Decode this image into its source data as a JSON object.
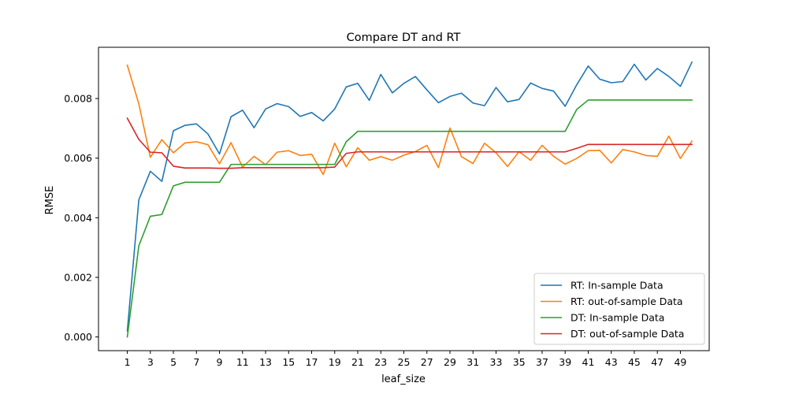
{
  "chart_data": {
    "type": "line",
    "title": "Compare DT and RT",
    "xlabel": "leaf_size",
    "ylabel": "RMSE",
    "xlim": [
      -1.5,
      51.5
    ],
    "ylim": [
      -0.00046,
      0.00972
    ],
    "xticks": [
      1,
      3,
      5,
      7,
      9,
      11,
      13,
      15,
      17,
      19,
      21,
      23,
      25,
      27,
      29,
      31,
      33,
      35,
      37,
      39,
      41,
      43,
      45,
      47,
      49
    ],
    "yticks": [
      0.0,
      0.002,
      0.004,
      0.006,
      0.008
    ],
    "ytick_labels": [
      "0.000",
      "0.002",
      "0.004",
      "0.006",
      "0.008"
    ],
    "grid": false,
    "legend_position": "lower-right",
    "x": [
      1,
      2,
      3,
      4,
      5,
      6,
      7,
      8,
      9,
      10,
      11,
      12,
      13,
      14,
      15,
      16,
      17,
      18,
      19,
      20,
      21,
      22,
      23,
      24,
      25,
      26,
      27,
      28,
      29,
      30,
      31,
      32,
      33,
      34,
      35,
      36,
      37,
      38,
      39,
      40,
      41,
      42,
      43,
      44,
      45,
      46,
      47,
      48,
      49,
      50
    ],
    "series": [
      {
        "name": "RT: In-sample Data",
        "color": "#1f77b4",
        "values": [
          0.0002,
          0.0046,
          0.00556,
          0.00522,
          0.00692,
          0.0071,
          0.00715,
          0.00681,
          0.00614,
          0.00739,
          0.00761,
          0.00702,
          0.00765,
          0.00783,
          0.00773,
          0.0074,
          0.00753,
          0.00725,
          0.00765,
          0.00839,
          0.00851,
          0.00794,
          0.00881,
          0.00819,
          0.00851,
          0.00874,
          0.00829,
          0.00786,
          0.00807,
          0.00818,
          0.00785,
          0.00776,
          0.00837,
          0.00789,
          0.00797,
          0.00852,
          0.00834,
          0.00825,
          0.00774,
          0.00846,
          0.00909,
          0.00865,
          0.00853,
          0.00857,
          0.00915,
          0.00862,
          0.00901,
          0.00874,
          0.00841,
          0.00922
        ]
      },
      {
        "name": "RT: out-of-sample Data",
        "color": "#ff7f0e",
        "values": [
          0.00912,
          0.00782,
          0.00603,
          0.00662,
          0.00618,
          0.00651,
          0.00655,
          0.00645,
          0.00581,
          0.00652,
          0.0057,
          0.00606,
          0.00578,
          0.0062,
          0.00625,
          0.00609,
          0.00613,
          0.00545,
          0.0065,
          0.00571,
          0.00635,
          0.00593,
          0.00605,
          0.00593,
          0.0061,
          0.00622,
          0.00643,
          0.00568,
          0.00701,
          0.00605,
          0.00582,
          0.0065,
          0.00618,
          0.00572,
          0.00622,
          0.00593,
          0.00643,
          0.00606,
          0.0058,
          0.00599,
          0.00625,
          0.00626,
          0.00584,
          0.00629,
          0.00621,
          0.00609,
          0.00606,
          0.00674,
          0.00599,
          0.00657
        ]
      },
      {
        "name": "DT: In-sample Data",
        "color": "#2ca02c",
        "values": [
          0.0,
          0.00306,
          0.00405,
          0.00411,
          0.00507,
          0.00519,
          0.00519,
          0.00519,
          0.00519,
          0.00579,
          0.00579,
          0.00579,
          0.00579,
          0.00579,
          0.00579,
          0.00579,
          0.00579,
          0.00579,
          0.00579,
          0.00655,
          0.0069,
          0.0069,
          0.0069,
          0.0069,
          0.0069,
          0.0069,
          0.0069,
          0.0069,
          0.0069,
          0.0069,
          0.0069,
          0.0069,
          0.0069,
          0.0069,
          0.0069,
          0.0069,
          0.0069,
          0.0069,
          0.0069,
          0.00763,
          0.00795,
          0.00795,
          0.00795,
          0.00795,
          0.00795,
          0.00795,
          0.00795,
          0.00795,
          0.00795,
          0.00795
        ]
      },
      {
        "name": "DT: out-of-sample Data",
        "color": "#d62728",
        "values": [
          0.00734,
          0.00663,
          0.0062,
          0.00618,
          0.00573,
          0.00567,
          0.00567,
          0.00567,
          0.00566,
          0.00566,
          0.00568,
          0.00568,
          0.00568,
          0.00568,
          0.00568,
          0.00568,
          0.00568,
          0.00568,
          0.0057,
          0.00616,
          0.00621,
          0.00621,
          0.00621,
          0.00621,
          0.00621,
          0.00621,
          0.00621,
          0.00621,
          0.00621,
          0.00621,
          0.00621,
          0.00621,
          0.00621,
          0.00621,
          0.00621,
          0.00621,
          0.00621,
          0.00621,
          0.00621,
          0.00633,
          0.00646,
          0.00646,
          0.00646,
          0.00646,
          0.00646,
          0.00646,
          0.00646,
          0.00646,
          0.00646,
          0.00646
        ]
      }
    ]
  }
}
